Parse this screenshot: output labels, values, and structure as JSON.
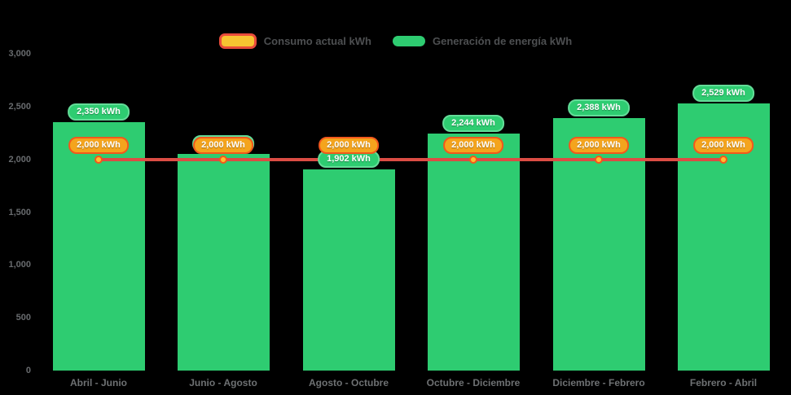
{
  "chart_data": {
    "type": "bar",
    "title": "",
    "categories": [
      "Abril - Junio",
      "Junio - Agosto",
      "Agosto - Octubre",
      "Octubre - Diciembre",
      "Diciembre - Febrero",
      "Febrero - Abril"
    ],
    "series": [
      {
        "name": "Consumo actual kWh",
        "type": "line",
        "color": "#DB4C44",
        "marker_fill": "#FFC02E",
        "marker_border": "#F2581C",
        "values": [
          2000,
          2000,
          2000,
          2000,
          2000,
          2000
        ],
        "point_labels": [
          "2,000 kWh",
          "2,000 kWh",
          "2,000 kWh",
          "2,000 kWh",
          "2,000 kWh",
          "2,000 kWh"
        ],
        "label_fill": "#F4A41D",
        "label_border": "#F2581C",
        "legend_swatch": {
          "fill": "#F7C331",
          "border": "#EA4C3B"
        }
      },
      {
        "name": "Generación de energía kWh",
        "type": "bar",
        "color": "#2ECC71",
        "values": [
          2350,
          2050,
          1902,
          2244,
          2388,
          2529
        ],
        "point_labels": [
          "2,350 kWh",
          "2,050 kWh",
          "1,902 kWh",
          "2,244 kWh",
          "2,388 kWh",
          "2,529 kWh"
        ],
        "occluded_label_indexes": [
          1
        ],
        "legend_swatch": {
          "fill": "#2ECC71",
          "border": "#2ECC71"
        }
      }
    ],
    "ylim": [
      0,
      3000
    ],
    "yticks": [
      {
        "value": 0,
        "label": "0"
      },
      {
        "value": 500,
        "label": "500"
      },
      {
        "value": 1000,
        "label": "1,000"
      },
      {
        "value": 1500,
        "label": "1,500"
      },
      {
        "value": 2000,
        "label": "2,000"
      },
      {
        "value": 2500,
        "label": "2,500"
      },
      {
        "value": 3000,
        "label": "3,000"
      }
    ],
    "grid": false,
    "legend_position": "top",
    "background": "#000000",
    "axis_text_color": "#6e7173"
  }
}
